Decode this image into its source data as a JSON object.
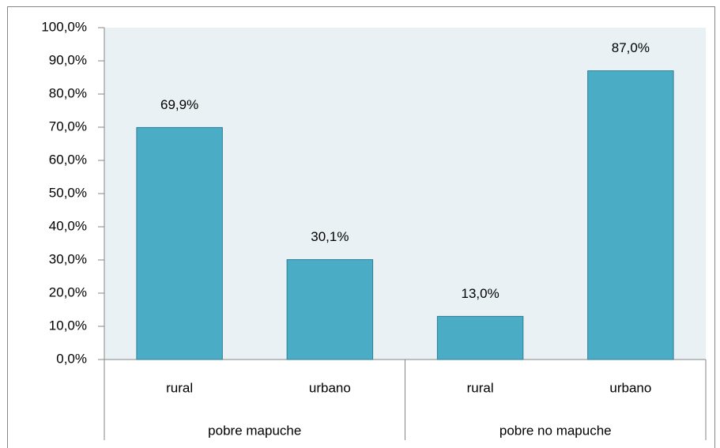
{
  "chart_data": {
    "type": "bar",
    "categories": [
      "rural",
      "urbano",
      "rural",
      "urbano"
    ],
    "category_groups": [
      "pobre mapuche",
      "pobre mapuche",
      "pobre no mapuche",
      "pobre no mapuche"
    ],
    "values": [
      69.9,
      30.1,
      13.0,
      87.0
    ],
    "value_labels": [
      "69,9%",
      "30,1%",
      "13,0%",
      "87,0%"
    ],
    "color": "#4bacc6",
    "ylim": [
      0,
      100
    ],
    "yticks": [
      {
        "value": 0,
        "label": "0,0%"
      },
      {
        "value": 10,
        "label": "10,0%"
      },
      {
        "value": 20,
        "label": "20,0%"
      },
      {
        "value": 30,
        "label": "30,0%"
      },
      {
        "value": 40,
        "label": "40,0%"
      },
      {
        "value": 50,
        "label": "50,0%"
      },
      {
        "value": 60,
        "label": "60,0%"
      },
      {
        "value": 70,
        "label": "70,0%"
      },
      {
        "value": 80,
        "label": "80,0%"
      },
      {
        "value": 90,
        "label": "90,0%"
      },
      {
        "value": 100,
        "label": "100,0%"
      }
    ],
    "grid": false
  }
}
